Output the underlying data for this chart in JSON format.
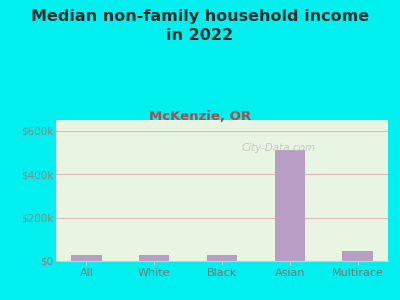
{
  "title_line1": "Median non-family household income",
  "title_line2": "in 2022",
  "subtitle": "McKenzie, OR",
  "categories": [
    "All",
    "White",
    "Black",
    "Asian",
    "Multirace"
  ],
  "values": [
    28000,
    26000,
    29000,
    510000,
    48000
  ],
  "bar_color": "#b89ec4",
  "background_outer": "#00efef",
  "background_chart": "#e8f5e2",
  "title_color": "#2d2d2d",
  "subtitle_color": "#a05050",
  "tick_label_color": "#777777",
  "ytick_label_color": "#888888",
  "ylim": [
    0,
    650000
  ],
  "yticks": [
    0,
    200000,
    400000,
    600000
  ],
  "ytick_labels": [
    "$0",
    "$200k",
    "$400k",
    "$600k"
  ],
  "grid_color": "#e0b0b0",
  "watermark": "City-Data.com",
  "title_fontsize": 11.5,
  "subtitle_fontsize": 9.5,
  "tick_fontsize": 8,
  "ytick_fontsize": 7.5
}
